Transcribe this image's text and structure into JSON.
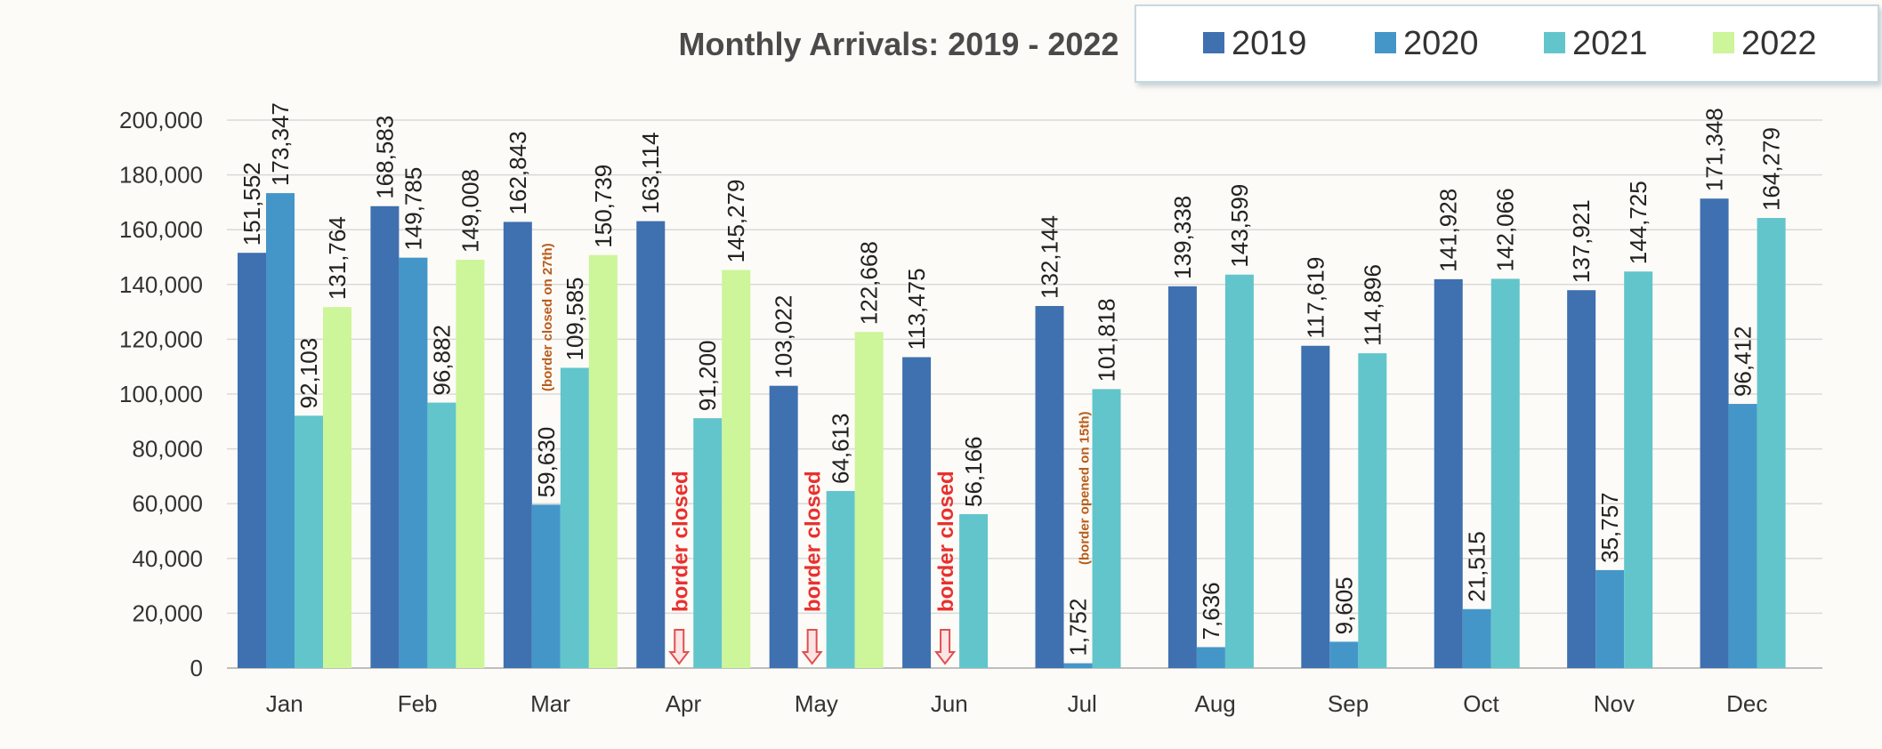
{
  "chart_data": {
    "type": "bar",
    "title": "Monthly Arrivals: 2019 - 2022",
    "xlabel": "",
    "ylabel": "",
    "ylim": [
      0,
      200000
    ],
    "yticks": [
      "0",
      "20,000",
      "40,000",
      "60,000",
      "80,000",
      "100,000",
      "120,000",
      "140,000",
      "160,000",
      "180,000",
      "200,000"
    ],
    "grid": true,
    "legend_position": "top-right",
    "categories": [
      "Jan",
      "Feb",
      "Mar",
      "Apr",
      "May",
      "Jun",
      "Jul",
      "Aug",
      "Sep",
      "Oct",
      "Nov",
      "Dec"
    ],
    "series": [
      {
        "name": "2019",
        "color": "#3f70b0",
        "values": [
          151552,
          168583,
          162843,
          163114,
          103022,
          113475,
          132144,
          139338,
          117619,
          141928,
          137921,
          171348
        ],
        "labels": [
          "151,552",
          "168,583",
          "162,843",
          "163,114",
          "103,022",
          "113,475",
          "132,144",
          "139,338",
          "117,619",
          "141,928",
          "137,921",
          "171,348"
        ]
      },
      {
        "name": "2020",
        "color": "#4596c8",
        "values": [
          173347,
          149785,
          59630,
          null,
          null,
          null,
          1752,
          7636,
          9605,
          21515,
          35757,
          96412
        ],
        "labels": [
          "173,347",
          "149,785",
          "59,630",
          "",
          "",
          "",
          "1,752",
          "7,636",
          "9,605",
          "21,515",
          "35,757",
          "96,412"
        ]
      },
      {
        "name": "2021",
        "color": "#62c5cc",
        "values": [
          92103,
          96882,
          109585,
          91200,
          64613,
          56166,
          101818,
          143599,
          114896,
          142066,
          144725,
          164279
        ],
        "labels": [
          "92,103",
          "96,882",
          "109,585",
          "91,200",
          "64,613",
          "56,166",
          "101,818",
          "143,599",
          "114,896",
          "142,066",
          "144,725",
          "164,279"
        ]
      },
      {
        "name": "2022",
        "color": "#cdf59a",
        "values": [
          131764,
          149008,
          150739,
          145279,
          122668,
          null,
          null,
          null,
          null,
          null,
          null,
          null
        ],
        "labels": [
          "131,764",
          "149,008",
          "150,739",
          "145,279",
          "122,668",
          "",
          "",
          "",
          "",
          "",
          "",
          ""
        ]
      }
    ],
    "annotations": [
      {
        "text": "border closed",
        "month": "Apr",
        "style": "red-arrow"
      },
      {
        "text": "border closed",
        "month": "May",
        "style": "red-arrow"
      },
      {
        "text": "border closed",
        "month": "Jun",
        "style": "red-arrow"
      },
      {
        "text": "(border closed on 27th)",
        "month": "Mar",
        "style": "orange"
      },
      {
        "text": "(border opened on 15th)",
        "month": "Jul",
        "style": "orange"
      }
    ]
  }
}
